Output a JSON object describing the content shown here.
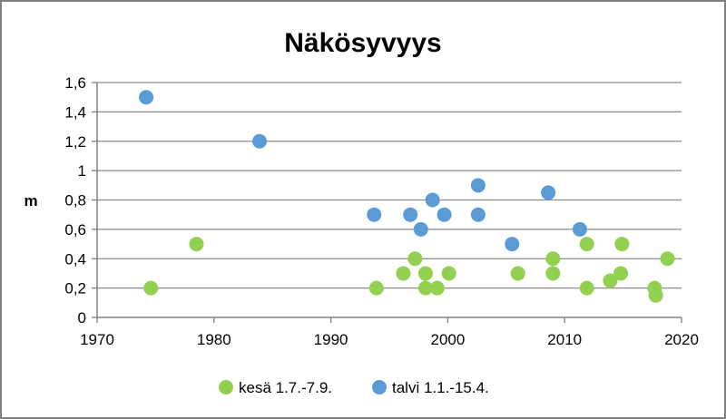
{
  "chart_data": {
    "type": "scatter",
    "title": "Näkösyvyys",
    "xlabel": "",
    "ylabel": "m",
    "xlim": [
      1970,
      2020
    ],
    "ylim": [
      0,
      1.6
    ],
    "x_ticks": [
      "1970",
      "1980",
      "1990",
      "2000",
      "2010",
      "2020"
    ],
    "y_ticks": [
      "0",
      "0,2",
      "0,4",
      "0,6",
      "0,8",
      "1",
      "1,2",
      "1,4",
      "1,6"
    ],
    "grid": "horizontal",
    "legend_position": "bottom",
    "series": [
      {
        "name": "kesä 1.7.-7.9.",
        "color": "#92d050",
        "points": [
          [
            1974.6,
            0.2
          ],
          [
            1978.5,
            0.5
          ],
          [
            1993.9,
            0.2
          ],
          [
            1996.2,
            0.3
          ],
          [
            1997.2,
            0.4
          ],
          [
            1998.1,
            0.3
          ],
          [
            1998.1,
            0.2
          ],
          [
            1999.1,
            0.2
          ],
          [
            2000.1,
            0.3
          ],
          [
            2006.0,
            0.3
          ],
          [
            2009.0,
            0.4
          ],
          [
            2009.0,
            0.3
          ],
          [
            2011.9,
            0.5
          ],
          [
            2011.9,
            0.2
          ],
          [
            2013.9,
            0.25
          ],
          [
            2014.8,
            0.3
          ],
          [
            2014.9,
            0.5
          ],
          [
            2017.7,
            0.2
          ],
          [
            2017.8,
            0.15
          ],
          [
            2018.8,
            0.4
          ]
        ]
      },
      {
        "name": "talvi 1.1.-15.4.",
        "color": "#5b9bd5",
        "points": [
          [
            1974.2,
            1.5
          ],
          [
            1983.9,
            1.2
          ],
          [
            1993.7,
            0.7
          ],
          [
            1996.8,
            0.7
          ],
          [
            1997.7,
            0.6
          ],
          [
            1998.7,
            0.8
          ],
          [
            1999.7,
            0.7
          ],
          [
            2002.6,
            0.9
          ],
          [
            2002.6,
            0.7
          ],
          [
            2005.5,
            0.5
          ],
          [
            2008.6,
            0.85
          ],
          [
            2011.3,
            0.6
          ]
        ]
      }
    ]
  }
}
